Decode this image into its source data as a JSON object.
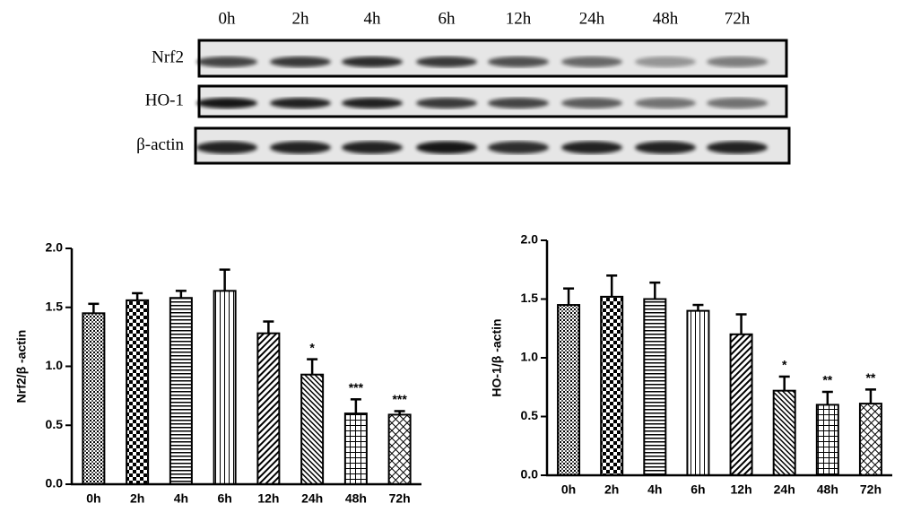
{
  "blot": {
    "lanes": [
      "0h",
      "2h",
      "4h",
      "6h",
      "12h",
      "24h",
      "48h",
      "72h"
    ],
    "rows": [
      "Nrf2",
      "HO-1",
      "β-actin"
    ]
  },
  "chart_data": [
    {
      "type": "bar",
      "ylabel": "Nrf2/β -actin",
      "categories": [
        "0h",
        "2h",
        "4h",
        "6h",
        "12h",
        "24h",
        "48h",
        "72h"
      ],
      "values": [
        1.45,
        1.56,
        1.58,
        1.64,
        1.28,
        0.93,
        0.6,
        0.59
      ],
      "errors": [
        0.08,
        0.06,
        0.06,
        0.18,
        0.1,
        0.13,
        0.12,
        0.03
      ],
      "significance": [
        null,
        null,
        null,
        null,
        null,
        "*",
        "***",
        "***"
      ],
      "ylim": [
        0,
        2
      ],
      "yticks": [
        {
          "value": 0,
          "label": "0.0"
        },
        0.5,
        {
          "value": 1,
          "label": "1.0"
        },
        1.5,
        {
          "value": 2,
          "label": "2.0"
        }
      ],
      "color": "#000000"
    },
    {
      "type": "bar",
      "ylabel": "HO-1/β -actin",
      "categories": [
        "0h",
        "2h",
        "4h",
        "6h",
        "12h",
        "24h",
        "48h",
        "72h"
      ],
      "values": [
        1.45,
        1.52,
        1.5,
        1.4,
        1.2,
        0.72,
        0.6,
        0.61
      ],
      "errors": [
        0.14,
        0.18,
        0.14,
        0.05,
        0.17,
        0.12,
        0.11,
        0.12
      ],
      "significance": [
        null,
        null,
        null,
        null,
        null,
        "*",
        "**",
        "**"
      ],
      "ylim": [
        0,
        2
      ],
      "yticks": [
        {
          "value": 0,
          "label": "0.0"
        },
        0.5,
        {
          "value": 1,
          "label": "1.0"
        },
        1.5,
        {
          "value": 2,
          "label": "2.0"
        }
      ],
      "color": "#000000"
    }
  ]
}
